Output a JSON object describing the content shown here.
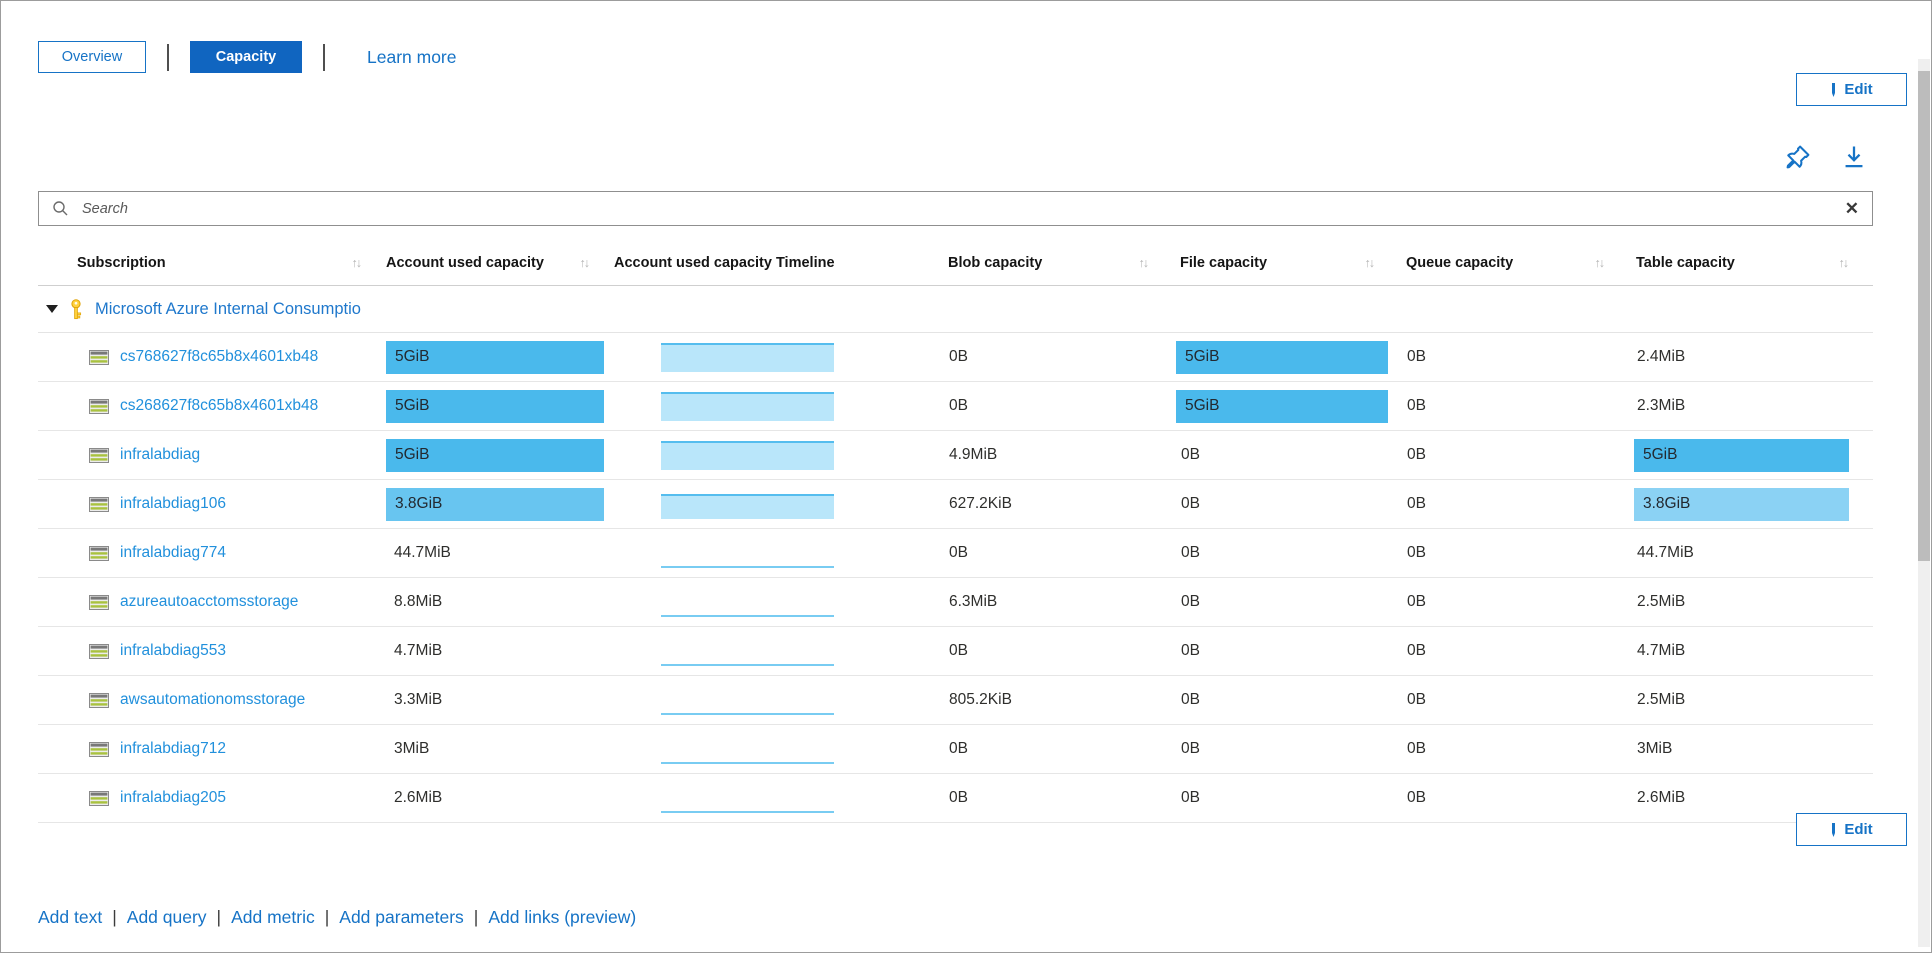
{
  "view_tabs": {
    "overview": "Overview",
    "capacity": "Capacity",
    "learn_more": "Learn more"
  },
  "edit_button": {
    "label": "Edit"
  },
  "search": {
    "placeholder": "Search"
  },
  "table": {
    "columns": [
      {
        "label": "Subscription",
        "sortable": true
      },
      {
        "label": "Account used capacity",
        "sortable": true
      },
      {
        "label": "Account used capacity Timeline",
        "sortable": false
      },
      {
        "label": "Blob capacity",
        "sortable": true
      },
      {
        "label": "File capacity",
        "sortable": true
      },
      {
        "label": "Queue capacity",
        "sortable": true
      },
      {
        "label": "Table capacity",
        "sortable": true
      }
    ],
    "group": {
      "label": "Microsoft Azure Internal Consumptio",
      "icon": "key-icon",
      "expanded": true
    },
    "rows": [
      {
        "name": "cs768627f8c65b8x4601xb48",
        "account": {
          "v": "5GiB",
          "bar": "dark"
        },
        "timeline": {
          "type": "area",
          "level": "full"
        },
        "blob": {
          "v": "0B"
        },
        "file": {
          "v": "5GiB",
          "bar": "dark"
        },
        "queue": {
          "v": "0B"
        },
        "table": {
          "v": "2.4MiB"
        }
      },
      {
        "name": "cs268627f8c65b8x4601xb48",
        "account": {
          "v": "5GiB",
          "bar": "dark"
        },
        "timeline": {
          "type": "area",
          "level": "full"
        },
        "blob": {
          "v": "0B"
        },
        "file": {
          "v": "5GiB",
          "bar": "dark"
        },
        "queue": {
          "v": "0B"
        },
        "table": {
          "v": "2.3MiB"
        }
      },
      {
        "name": "infralabdiag",
        "account": {
          "v": "5GiB",
          "bar": "dark"
        },
        "timeline": {
          "type": "area",
          "level": "full"
        },
        "blob": {
          "v": "4.9MiB"
        },
        "file": {
          "v": "0B"
        },
        "queue": {
          "v": "0B"
        },
        "table": {
          "v": "5GiB",
          "bar": "dark"
        }
      },
      {
        "name": "infralabdiag106",
        "account": {
          "v": "3.8GiB",
          "bar": "medium"
        },
        "timeline": {
          "type": "area",
          "level": "high"
        },
        "blob": {
          "v": "627.2KiB"
        },
        "file": {
          "v": "0B"
        },
        "queue": {
          "v": "0B"
        },
        "table": {
          "v": "3.8GiB",
          "bar": "light"
        }
      },
      {
        "name": "infralabdiag774",
        "account": {
          "v": "44.7MiB"
        },
        "timeline": {
          "type": "line"
        },
        "blob": {
          "v": "0B"
        },
        "file": {
          "v": "0B"
        },
        "queue": {
          "v": "0B"
        },
        "table": {
          "v": "44.7MiB"
        }
      },
      {
        "name": "azureautoacctomsstorage",
        "account": {
          "v": "8.8MiB"
        },
        "timeline": {
          "type": "line"
        },
        "blob": {
          "v": "6.3MiB"
        },
        "file": {
          "v": "0B"
        },
        "queue": {
          "v": "0B"
        },
        "table": {
          "v": "2.5MiB"
        }
      },
      {
        "name": "infralabdiag553",
        "account": {
          "v": "4.7MiB"
        },
        "timeline": {
          "type": "line"
        },
        "blob": {
          "v": "0B"
        },
        "file": {
          "v": "0B"
        },
        "queue": {
          "v": "0B"
        },
        "table": {
          "v": "4.7MiB"
        }
      },
      {
        "name": "awsautomationomsstorage",
        "account": {
          "v": "3.3MiB"
        },
        "timeline": {
          "type": "line"
        },
        "blob": {
          "v": "805.2KiB"
        },
        "file": {
          "v": "0B"
        },
        "queue": {
          "v": "0B"
        },
        "table": {
          "v": "2.5MiB"
        }
      },
      {
        "name": "infralabdiag712",
        "account": {
          "v": "3MiB"
        },
        "timeline": {
          "type": "line"
        },
        "blob": {
          "v": "0B"
        },
        "file": {
          "v": "0B"
        },
        "queue": {
          "v": "0B"
        },
        "table": {
          "v": "3MiB"
        }
      },
      {
        "name": "infralabdiag205",
        "account": {
          "v": "2.6MiB"
        },
        "timeline": {
          "type": "line"
        },
        "blob": {
          "v": "0B"
        },
        "file": {
          "v": "0B"
        },
        "queue": {
          "v": "0B"
        },
        "table": {
          "v": "2.6MiB"
        }
      }
    ]
  },
  "footer": {
    "links": [
      "Add text",
      "Add query",
      "Add metric",
      "Add parameters",
      "Add links (preview)"
    ]
  },
  "icons": [
    "edit-pencil-icon",
    "pin-icon",
    "download-icon",
    "search-icon",
    "clear-x-icon",
    "expander-triangle-icon",
    "key-icon",
    "storage-account-icon",
    "sort-icon"
  ],
  "colors": {
    "bar_dark": "#4ab9ec",
    "bar_medium": "#68c5f0",
    "bar_light": "#8bd2f4",
    "timeline_fill": "#b9e6fa",
    "timeline_edge": "#55bdee",
    "timeline_line": "#79ccf2",
    "accent_blue": "#1673c6",
    "capacity_button_bg": "#1065c0",
    "row_link_blue": "#2190dc"
  }
}
